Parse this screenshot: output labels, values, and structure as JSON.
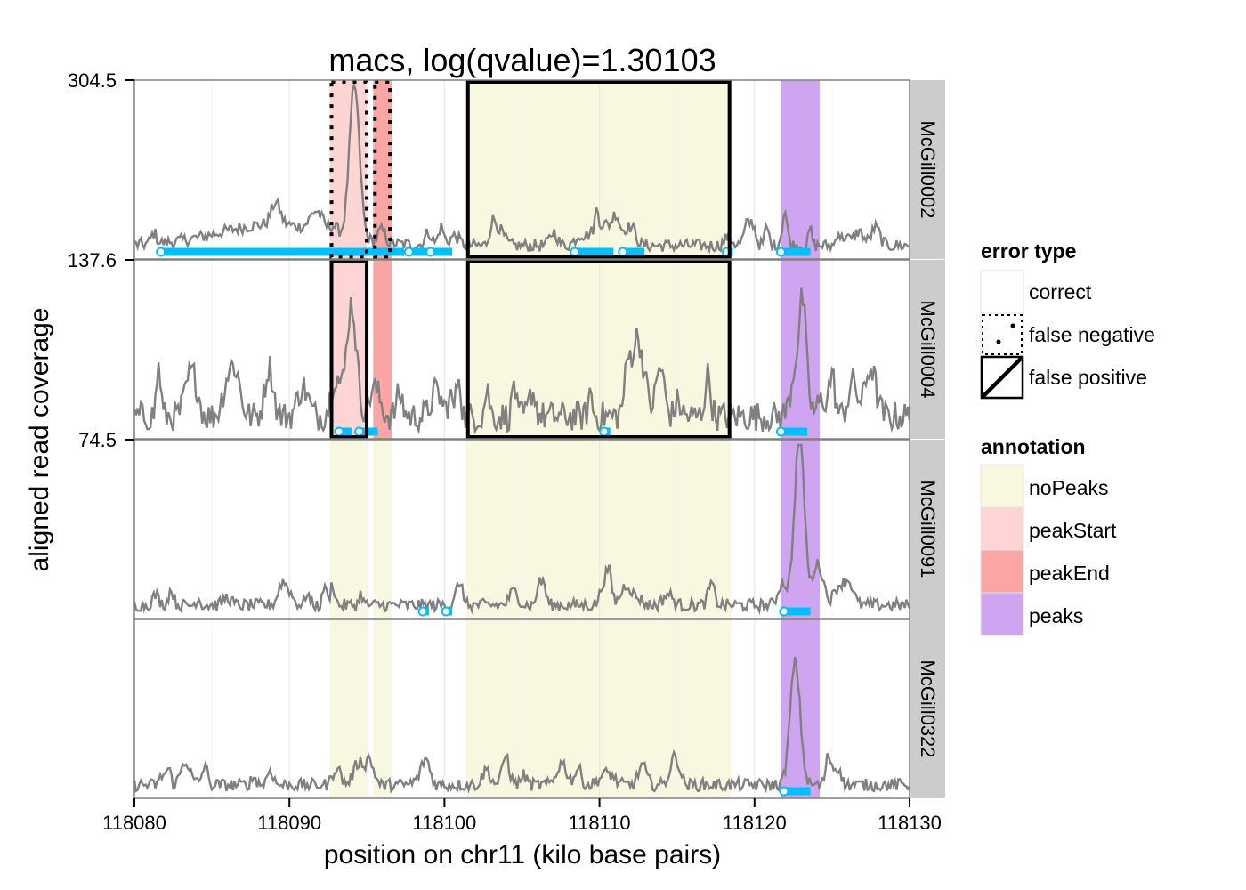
{
  "chart_data": {
    "type": "line",
    "title": "macs, log(qvalue)=1.30103",
    "xlabel": "position on chr11 (kilo base pairs)",
    "ylabel": "aligned read coverage",
    "xlim": [
      118080,
      118130
    ],
    "x_ticks": [
      "118080",
      "118090",
      "118100",
      "118110",
      "118120",
      "118130"
    ],
    "panels": [
      {
        "name": "McGill0002",
        "ymax_label": "304.5",
        "ymax": 304.5,
        "peak_x": 118094.2,
        "peak_height": 0.79,
        "regions": [
          {
            "type": "peakStart",
            "start": 118092.6,
            "end": 118095.1,
            "error": "false negative"
          },
          {
            "type": "peakEnd",
            "start": 118095.4,
            "end": 118096.6,
            "error": "false negative"
          },
          {
            "type": "noPeaks",
            "start": 118101.4,
            "end": 118118.5,
            "error": "false positive"
          },
          {
            "type": "peaks",
            "start": 118121.7,
            "end": 118124.2,
            "error": "correct"
          }
        ],
        "called_peaks": [
          [
            118081.7,
            118097.4
          ],
          [
            118097.7,
            118098.9
          ],
          [
            118099.1,
            118100.5
          ],
          [
            118108.4,
            118110.9
          ],
          [
            118111.5,
            118112.9
          ],
          [
            118118.2,
            118118.6
          ],
          [
            118121.7,
            118123.6
          ]
        ]
      },
      {
        "name": "McGill0004",
        "ymax_label": "137.6",
        "ymax": 137.6,
        "peak_x": 118094.0,
        "peak_height": 0.63,
        "regions": [
          {
            "type": "peakStart",
            "start": 118092.6,
            "end": 118095.1,
            "error": "false positive"
          },
          {
            "type": "peakEnd",
            "start": 118095.4,
            "end": 118096.6,
            "error": "correct"
          },
          {
            "type": "noPeaks",
            "start": 118101.4,
            "end": 118118.5,
            "error": "false positive"
          },
          {
            "type": "peaks",
            "start": 118121.7,
            "end": 118124.2,
            "error": "correct"
          }
        ],
        "called_peaks": [
          [
            118093.2,
            118094.0
          ],
          [
            118094.5,
            118095.7
          ],
          [
            118110.3,
            118110.7
          ],
          [
            118121.7,
            118123.4
          ]
        ]
      },
      {
        "name": "McGill0091",
        "ymax_label": "74.5",
        "ymax": 74.5,
        "peak_x": 118122.9,
        "peak_height": 0.95,
        "regions": [
          {
            "type": "noPeaks",
            "start": 118092.6,
            "end": 118095.1,
            "error": "correct"
          },
          {
            "type": "noPeaks",
            "start": 118095.4,
            "end": 118096.6,
            "error": "correct"
          },
          {
            "type": "noPeaks",
            "start": 118101.4,
            "end": 118118.5,
            "error": "correct"
          },
          {
            "type": "peaks",
            "start": 118121.7,
            "end": 118124.2,
            "error": "correct"
          }
        ],
        "called_peaks": [
          [
            118098.6,
            118099.0
          ],
          [
            118100.1,
            118100.5
          ],
          [
            118121.9,
            118123.6
          ]
        ]
      },
      {
        "name": "McGill0322",
        "ymax_label": "",
        "ymax": null,
        "peak_x": 118122.6,
        "peak_height": 0.6,
        "regions": [
          {
            "type": "noPeaks",
            "start": 118092.6,
            "end": 118095.1,
            "error": "correct"
          },
          {
            "type": "noPeaks",
            "start": 118095.4,
            "end": 118096.6,
            "error": "correct"
          },
          {
            "type": "noPeaks",
            "start": 118101.4,
            "end": 118118.5,
            "error": "correct"
          },
          {
            "type": "peaks",
            "start": 118121.7,
            "end": 118124.2,
            "error": "correct"
          }
        ],
        "called_peaks": [
          [
            118121.9,
            118123.6
          ]
        ]
      }
    ],
    "legend": {
      "placement": "right",
      "error_type": {
        "title": "error type",
        "entries": [
          "correct",
          "false negative",
          "false positive"
        ]
      },
      "annotation": {
        "title": "annotation",
        "entries": [
          {
            "label": "noPeaks",
            "color": "#f8f7e0"
          },
          {
            "label": "peakStart",
            "color": "#fdd5d5"
          },
          {
            "label": "peakEnd",
            "color": "#fba5a5"
          },
          {
            "label": "peaks",
            "color": "#cfa4f0"
          }
        ]
      }
    },
    "colors": {
      "coverage_line": "#808080",
      "called_peak": "#00bfff",
      "strip_bg": "#cccccc",
      "panel_border": "#808080"
    },
    "grid": true
  }
}
